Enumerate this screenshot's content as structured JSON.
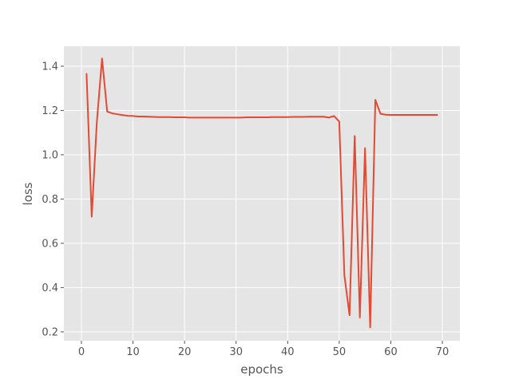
{
  "chart_data": {
    "type": "line",
    "title": "",
    "xlabel": "epochs",
    "ylabel": "loss",
    "xlim": [
      -3.4,
      73.4
    ],
    "ylim": [
      0.16,
      1.49
    ],
    "xticks": [
      0,
      10,
      20,
      30,
      40,
      50,
      60,
      70
    ],
    "yticks": [
      0.2,
      0.4,
      0.6,
      0.8,
      1.0,
      1.2,
      1.4
    ],
    "ytick_labels": [
      "0.2",
      "0.4",
      "0.6",
      "0.8",
      "1.0",
      "1.2",
      "1.4"
    ],
    "grid": true,
    "style": "ggplot",
    "colors": {
      "panel": "#e5e5e5",
      "grid": "#ffffff",
      "line": "#e24a33",
      "text": "#555555"
    },
    "series": [
      {
        "x": [
          1,
          2,
          3,
          4,
          5,
          6,
          7,
          8,
          9,
          10,
          11,
          12,
          13,
          14,
          15,
          16,
          17,
          18,
          19,
          20,
          21,
          22,
          23,
          24,
          25,
          26,
          27,
          28,
          29,
          30,
          31,
          32,
          33,
          34,
          35,
          36,
          37,
          38,
          39,
          40,
          41,
          42,
          43,
          44,
          45,
          46,
          47,
          48,
          49,
          50,
          51,
          52,
          53,
          54,
          55,
          56,
          57,
          58,
          59,
          60,
          61,
          62,
          63,
          64,
          65,
          66,
          67,
          68,
          69
        ],
        "values": [
          1.365,
          0.72,
          1.15,
          1.435,
          1.195,
          1.187,
          1.183,
          1.179,
          1.176,
          1.175,
          1.173,
          1.173,
          1.172,
          1.171,
          1.17,
          1.17,
          1.17,
          1.169,
          1.169,
          1.169,
          1.168,
          1.168,
          1.168,
          1.168,
          1.168,
          1.168,
          1.168,
          1.168,
          1.168,
          1.168,
          1.168,
          1.169,
          1.169,
          1.169,
          1.169,
          1.169,
          1.17,
          1.17,
          1.17,
          1.17,
          1.171,
          1.171,
          1.171,
          1.172,
          1.172,
          1.172,
          1.172,
          1.168,
          1.175,
          1.15,
          0.455,
          0.275,
          1.085,
          0.265,
          1.03,
          0.22,
          1.248,
          1.185,
          1.181,
          1.18,
          1.18,
          1.18,
          1.18,
          1.18,
          1.18,
          1.18,
          1.18,
          1.18,
          1.18
        ]
      }
    ]
  }
}
